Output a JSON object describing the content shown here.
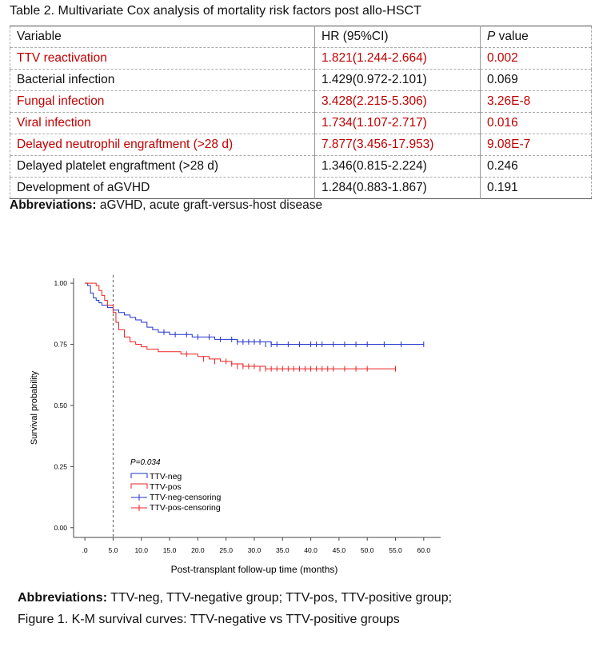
{
  "table": {
    "title": "Table 2. Multivariate Cox analysis of mortality risk factors post allo-HSCT",
    "headers": {
      "variable": "Variable",
      "hr": "HR (95%CI)",
      "p_italic": "P",
      "p_rest": " value"
    },
    "rows": [
      {
        "variable": "TTV reactivation",
        "hr": "1.821(1.244-2.664)",
        "p": "0.002",
        "highlight": true
      },
      {
        "variable": "Bacterial infection",
        "hr": "1.429(0.972-2.101)",
        "p": "0.069",
        "highlight": false
      },
      {
        "variable": "Fungal infection",
        "hr": "3.428(2.215-5.306)",
        "p": "3.26E-8",
        "highlight": true
      },
      {
        "variable": "Viral infection",
        "hr": "1.734(1.107-2.717)",
        "p": "0.016",
        "highlight": true
      },
      {
        "variable": "Delayed neutrophil engraftment (>28 d)",
        "hr": "7.877(3.456-17.953)",
        "p": "9.08E-7",
        "highlight": true
      },
      {
        "variable": "Delayed platelet engraftment (>28 d)",
        "hr": "1.346(0.815-2.224)",
        "p": "0.246",
        "highlight": false
      },
      {
        "variable": "Development of aGVHD",
        "hr": "1.284(0.883-1.867)",
        "p": "0.191",
        "highlight": false
      }
    ],
    "abbreviations_label": "Abbreviations:",
    "abbreviations_text": " aGVHD, acute graft-versus-host disease"
  },
  "figure": {
    "abbreviations_label": "Abbreviations:",
    "abbreviations_text": " TTV-neg, TTV-negative group; TTV-pos, TTV-positive group;",
    "caption": "Figure 1. K-M survival curves: TTV-negative vs TTV-positive groups"
  },
  "colors": {
    "highlight": "#c00000",
    "neg": "#2233cc",
    "pos": "#ee2222"
  },
  "chart_data": {
    "type": "line",
    "xlabel": "Post-transplant follow-up time (months)",
    "ylabel": "Survival probability",
    "xlim": [
      -2,
      63
    ],
    "ylim": [
      -0.04,
      1.02
    ],
    "x_ticks": [
      0,
      5,
      10,
      15,
      20,
      25,
      30,
      35,
      40,
      45,
      50,
      55,
      60
    ],
    "x_tick_labels": [
      ".0",
      "5.0",
      "10.0",
      "15.0",
      "20.0",
      "25.0",
      "30.0",
      "35.0",
      "40.0",
      "45.0",
      "50.0",
      "55.0",
      "60.0"
    ],
    "y_ticks": [
      0,
      0.25,
      0.5,
      0.75,
      1.0
    ],
    "y_tick_labels": [
      "0.00",
      "0.25",
      "0.50",
      "0.75",
      "1.00"
    ],
    "reference_line_x": 5,
    "annotation": "P=0.034",
    "legend": [
      "TTV-neg",
      "TTV-pos",
      "TTV-neg-censoring",
      "TTV-pos-censoring"
    ],
    "series": [
      {
        "name": "TTV-neg",
        "x": [
          0,
          0.5,
          1,
          1.5,
          2,
          2.5,
          3,
          4,
          5,
          6,
          7,
          8,
          9,
          10,
          11,
          12,
          13,
          14,
          15,
          17,
          19,
          21,
          23,
          25,
          27,
          29,
          31,
          33,
          35,
          40,
          45,
          50,
          55,
          60
        ],
        "y": [
          1.0,
          0.99,
          0.96,
          0.94,
          0.93,
          0.92,
          0.91,
          0.9,
          0.89,
          0.88,
          0.87,
          0.86,
          0.85,
          0.84,
          0.82,
          0.81,
          0.8,
          0.8,
          0.79,
          0.79,
          0.78,
          0.78,
          0.77,
          0.77,
          0.76,
          0.76,
          0.76,
          0.75,
          0.75,
          0.75,
          0.75,
          0.75,
          0.75,
          0.75
        ]
      },
      {
        "name": "TTV-pos",
        "x": [
          0,
          1,
          2,
          2.5,
          3,
          3.5,
          4,
          5,
          5.5,
          6,
          7,
          8,
          9,
          10,
          11,
          12,
          13,
          15,
          17,
          20,
          22,
          24,
          26,
          28,
          30,
          32,
          35,
          40,
          45,
          50,
          55
        ],
        "y": [
          1.0,
          1.0,
          0.99,
          0.97,
          0.95,
          0.93,
          0.91,
          0.88,
          0.84,
          0.81,
          0.78,
          0.76,
          0.75,
          0.74,
          0.73,
          0.73,
          0.72,
          0.72,
          0.71,
          0.7,
          0.69,
          0.68,
          0.67,
          0.66,
          0.66,
          0.65,
          0.65,
          0.65,
          0.65,
          0.65,
          0.65
        ]
      }
    ],
    "censoring": [
      {
        "name": "TTV-neg-censoring",
        "x": [
          14,
          16,
          18,
          20,
          22,
          24,
          26,
          27,
          28,
          29,
          30,
          31,
          32,
          33,
          34,
          36,
          38,
          40,
          41,
          42,
          44,
          46,
          48,
          50,
          53,
          56,
          60
        ],
        "y": [
          0.8,
          0.79,
          0.79,
          0.78,
          0.78,
          0.77,
          0.77,
          0.76,
          0.76,
          0.76,
          0.76,
          0.76,
          0.75,
          0.75,
          0.75,
          0.75,
          0.75,
          0.75,
          0.75,
          0.75,
          0.75,
          0.75,
          0.75,
          0.75,
          0.75,
          0.75,
          0.75
        ]
      },
      {
        "name": "TTV-pos-censoring",
        "x": [
          18,
          21,
          23,
          25,
          26,
          27,
          28,
          29,
          30,
          31,
          32,
          33,
          34,
          35,
          36,
          37,
          38,
          39,
          40,
          41,
          42,
          43,
          44,
          46,
          48,
          50,
          55
        ],
        "y": [
          0.71,
          0.69,
          0.68,
          0.68,
          0.67,
          0.66,
          0.66,
          0.66,
          0.66,
          0.65,
          0.65,
          0.65,
          0.65,
          0.65,
          0.65,
          0.65,
          0.65,
          0.65,
          0.65,
          0.65,
          0.65,
          0.65,
          0.65,
          0.65,
          0.65,
          0.65,
          0.65
        ]
      }
    ]
  }
}
